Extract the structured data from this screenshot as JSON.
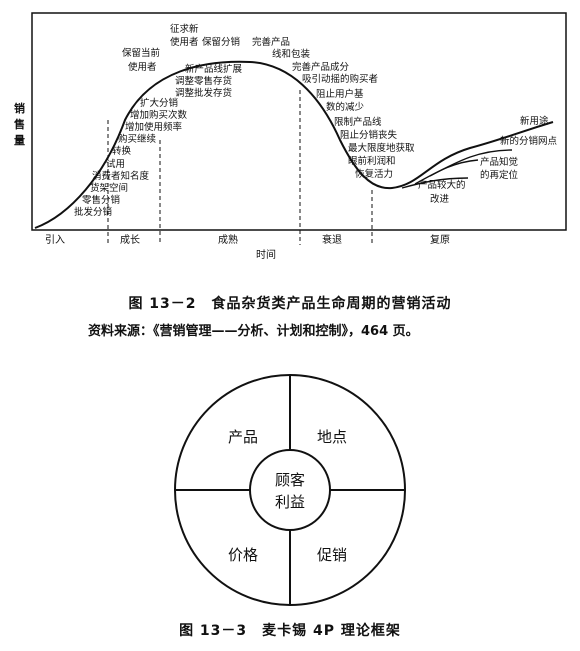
{
  "figure1": {
    "y_axis_label": [
      "销",
      "售",
      "量"
    ],
    "x_axis_label": "时间",
    "stages": [
      "引入",
      "成长",
      "成熟",
      "衰退",
      "复原"
    ],
    "annotations": {
      "intro": [
        "批发分销",
        "零售分销",
        "货架空间",
        "消费者知名度",
        "试用",
        "转换",
        "购买继续"
      ],
      "growth": [
        "增加使用频率",
        "增加购买次数",
        "扩大分销",
        "保留当前",
        "使用者"
      ],
      "maturity_top": [
        "征求新",
        "使用者",
        "保留分销",
        "完善产品",
        "线和包装"
      ],
      "maturity_mid": [
        "新产品线扩展",
        "调整零售存货",
        "调整批发存货"
      ],
      "decline": [
        "完善产品成分",
        "吸引动摇的购买者",
        "阻止用户基",
        "数的减少",
        "限制产品线",
        "阻止分销丧失",
        "最大限度地获取",
        "眼前利润和",
        "恢复活力"
      ],
      "revival": [
        "产品较大的",
        "改进",
        "产品知觉",
        "的再定位",
        "新的分销网点",
        "新用途"
      ]
    },
    "caption": "图 13－2　食品杂货类产品生命周期的营销活动",
    "source": "资料来源：《营销管理——分析、计划和控制》，464 页。"
  },
  "figure2": {
    "center": [
      "顾客",
      "利益"
    ],
    "quadrants": [
      "产品",
      "地点",
      "价格",
      "促销"
    ],
    "caption": "图 13－3　麦卡锡 4P 理论框架"
  }
}
